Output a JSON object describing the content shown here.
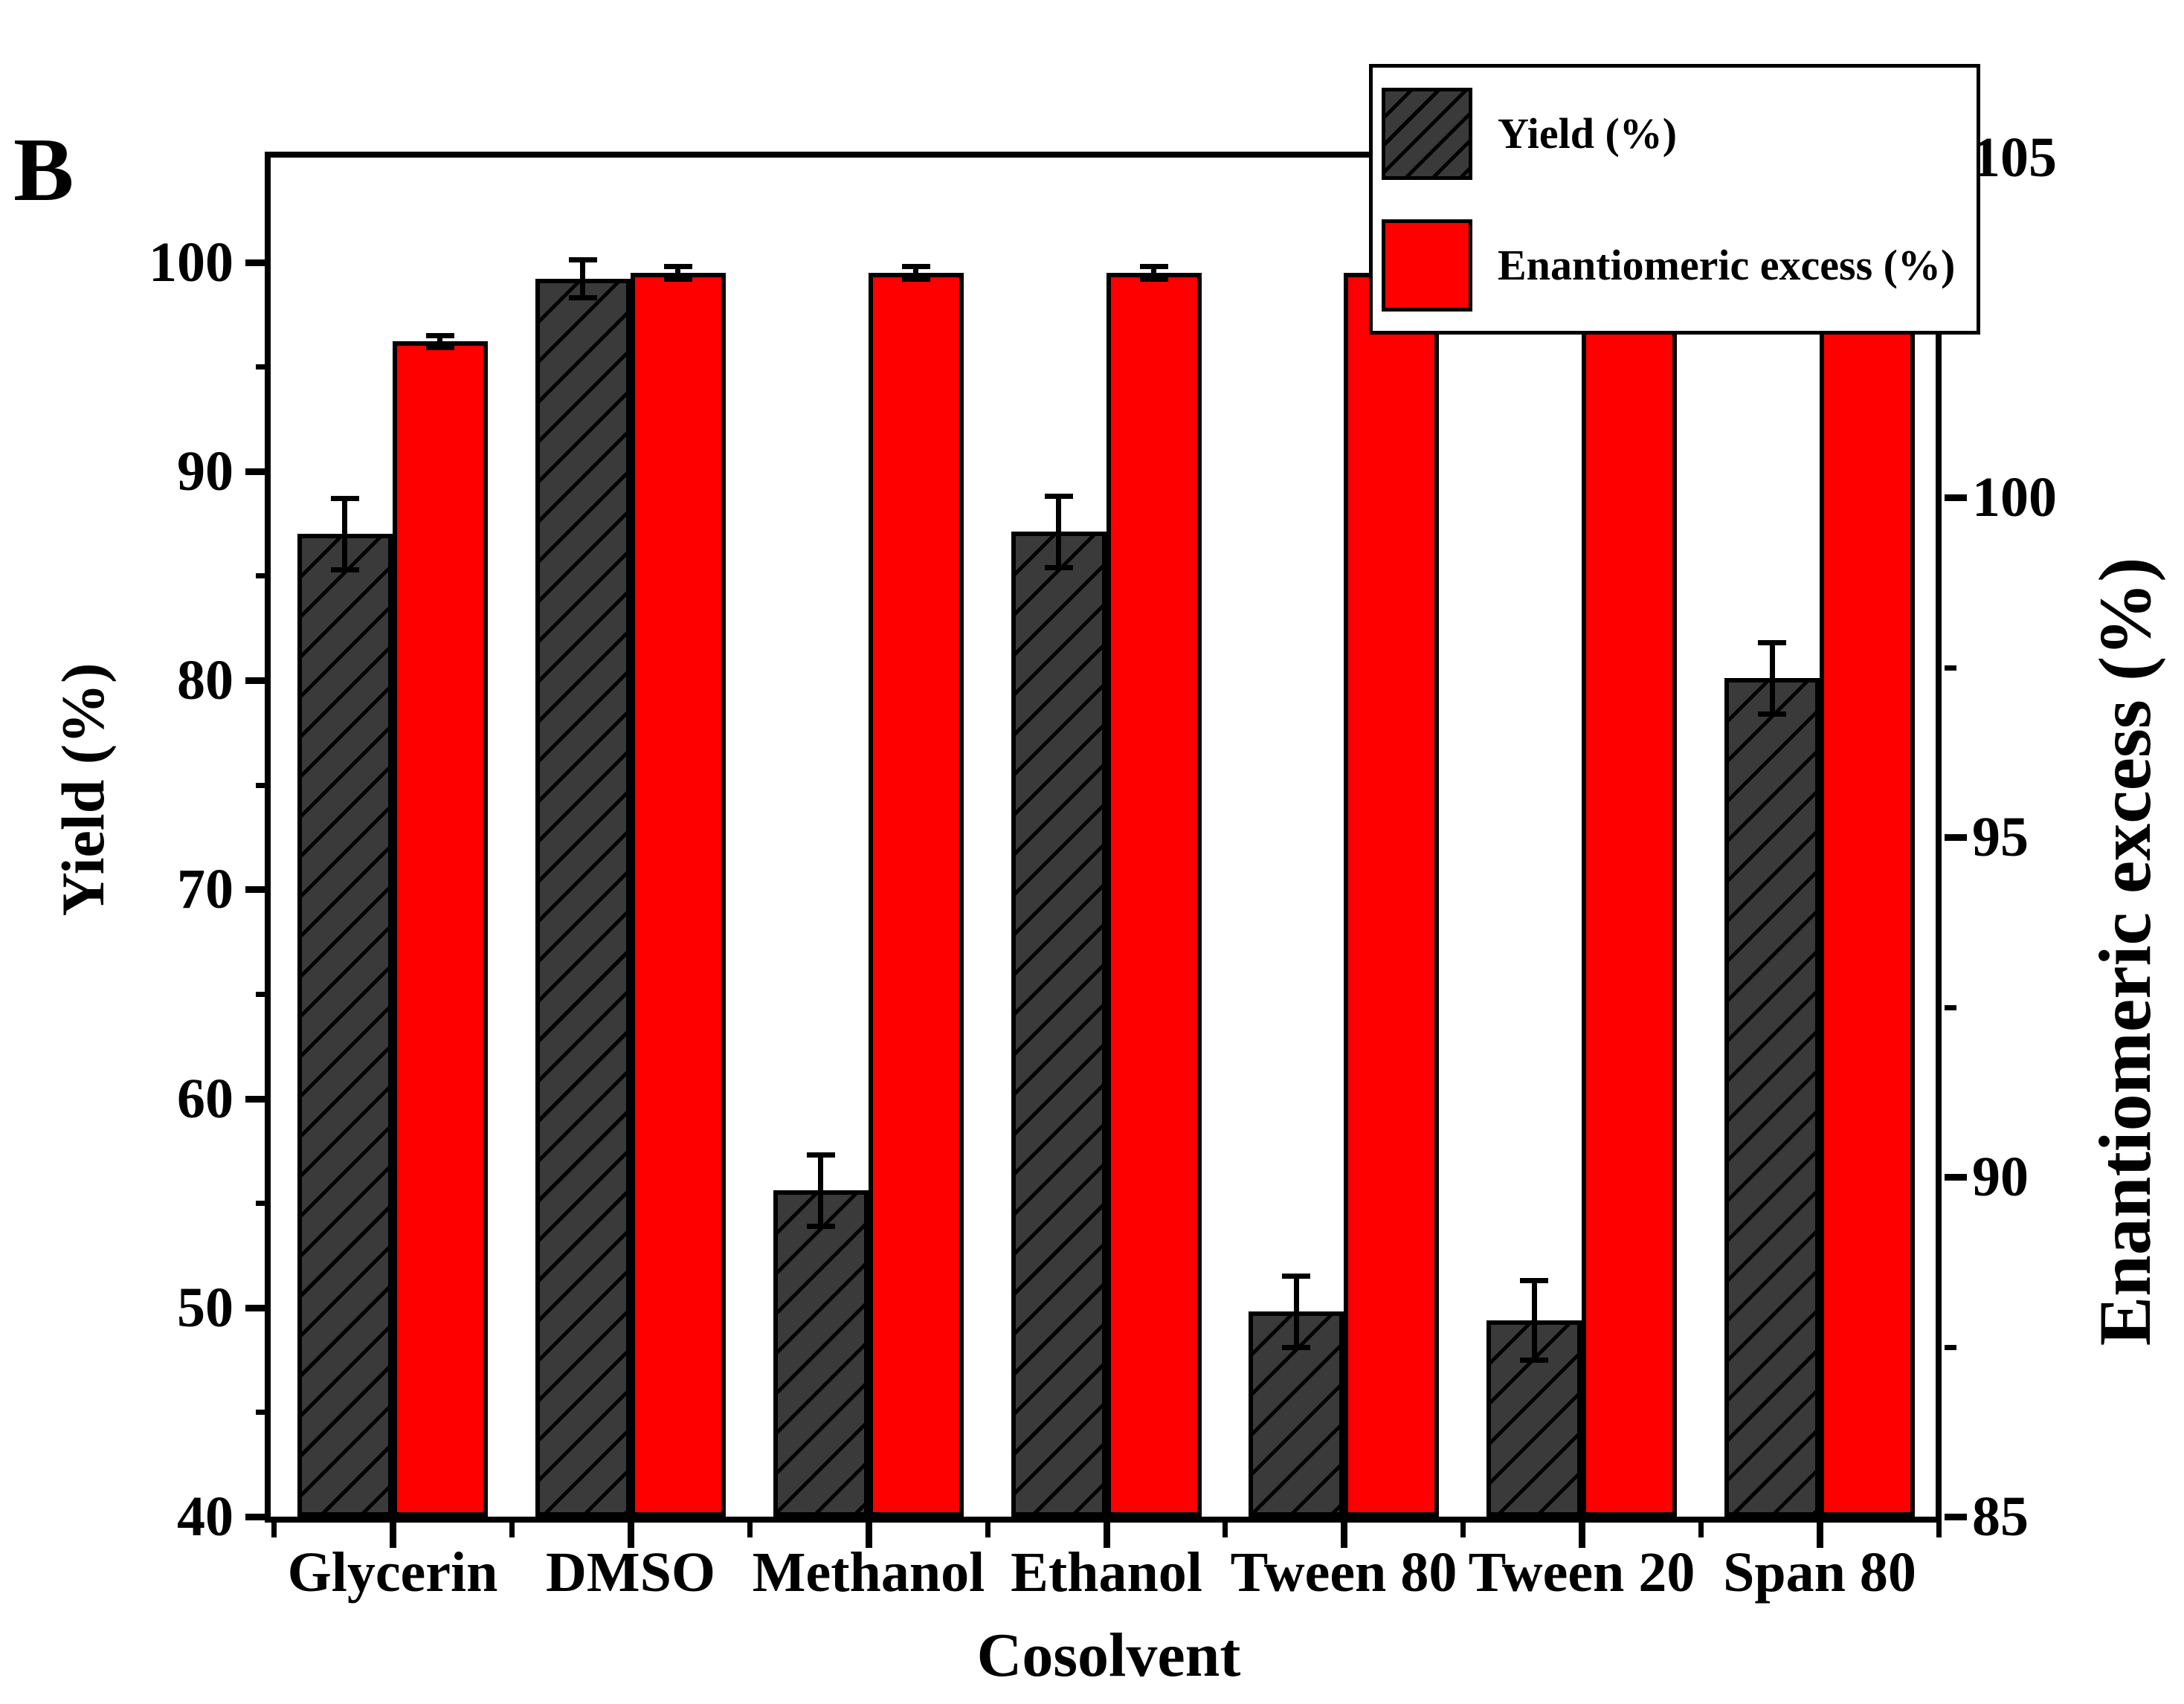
{
  "panel_label": "B",
  "legend": {
    "items": [
      {
        "label": "Yield (%)",
        "swatch": "hatched-dark-gray"
      },
      {
        "label": "Enantiomeric excess (%)",
        "swatch": "red"
      }
    ],
    "position": "top-right"
  },
  "chart_data": {
    "type": "bar",
    "title": "",
    "xlabel": "Cosolvent",
    "ylabel_left": "Yield (%)",
    "ylabel_right": "Enantiomeric excess (%)",
    "categories": [
      "Glycerin",
      "DMSO",
      "Methanol",
      "Ethanol",
      "Tween 80",
      "Tween 20",
      "Span 80"
    ],
    "series": [
      {
        "name": "Yield (%)",
        "color": "#3a3a3a",
        "hatch": true,
        "values": [
          87.0,
          99.2,
          55.6,
          87.1,
          49.8,
          49.4,
          80.1
        ],
        "errors": [
          1.7,
          0.9,
          1.7,
          1.7,
          1.7,
          1.9,
          1.7
        ]
      },
      {
        "name": "Enantiomeric excess (%)",
        "color": "#ff0000",
        "hatch": false,
        "values": [
          96.2,
          99.5,
          99.5,
          99.5,
          99.5,
          99.5,
          99.5
        ],
        "errors": [
          0.3,
          0.3,
          0.3,
          0.3,
          0.3,
          0.3,
          0.3
        ]
      }
    ],
    "ylim_left": [
      40,
      105
    ],
    "ylim_right": [
      85,
      105
    ],
    "yticks_left": [
      40,
      50,
      60,
      70,
      80,
      90,
      100
    ],
    "yticks_minor_left": [
      45,
      55,
      65,
      75,
      85,
      95
    ],
    "yticks_right": [
      85,
      90,
      95,
      100,
      105
    ],
    "yticks_minor_right": [
      87.5,
      92.5,
      97.5,
      102.5
    ],
    "grid": false,
    "legend_position": "top-right",
    "bar_edge_color": "#000000",
    "note": "Both series are drawn against the left-axis scale (40-105); right axis shows enantiomeric excess labels 85-105."
  }
}
